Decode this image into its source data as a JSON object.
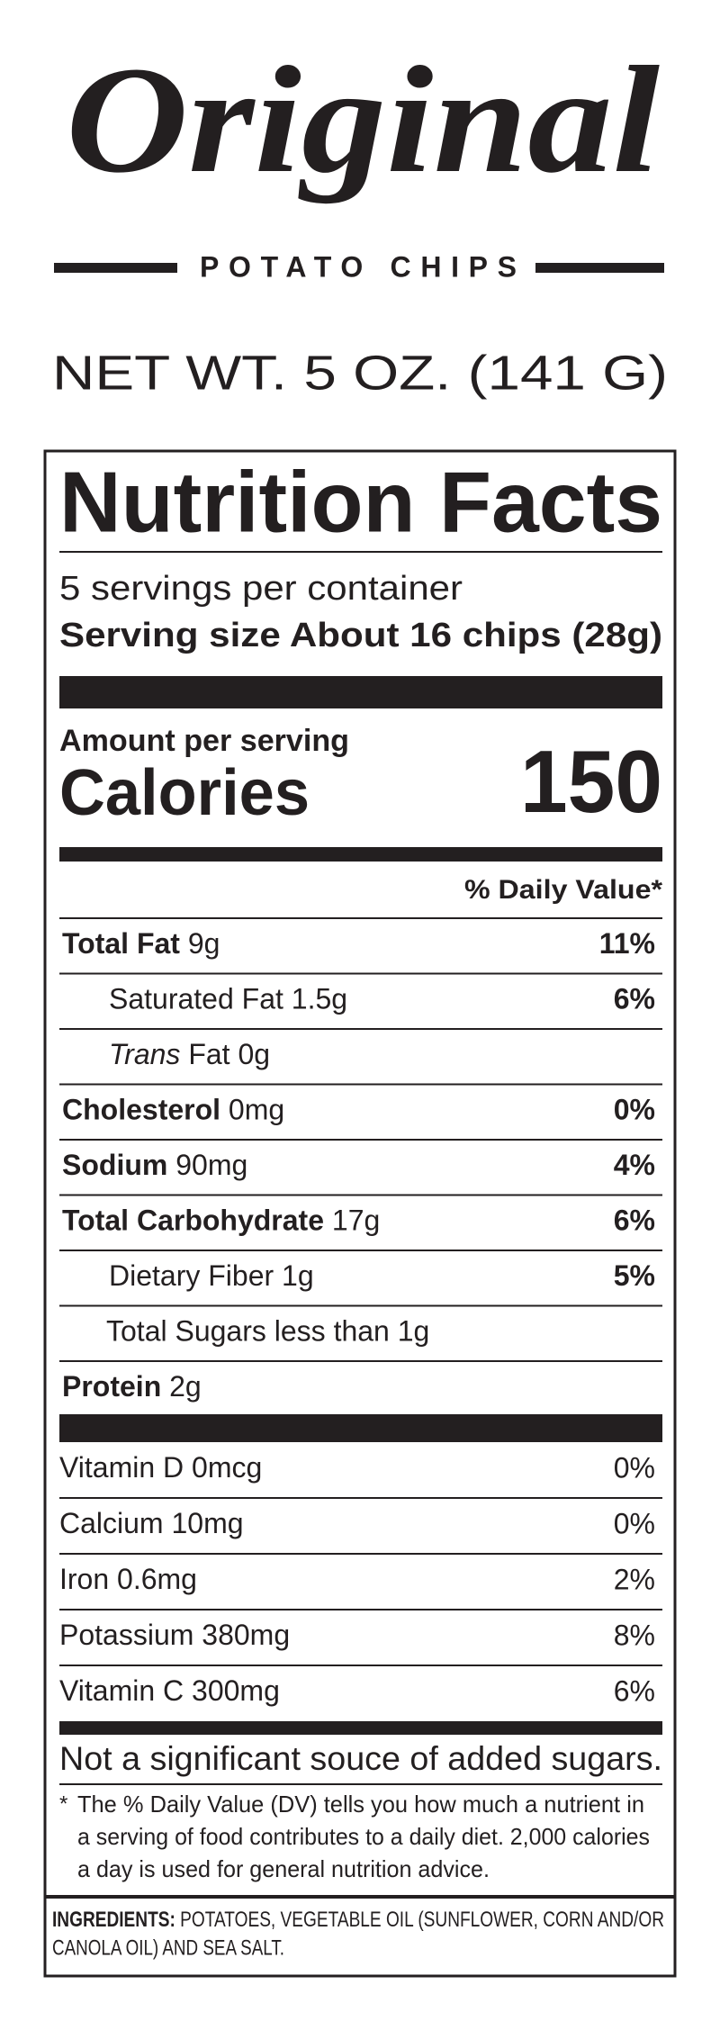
{
  "header": {
    "title": "Original",
    "subtitle": "POTATO CHIPS",
    "net_weight": "NET WT. 5 OZ. (141 G)"
  },
  "nutrition_facts": {
    "title": "Nutrition Facts",
    "servings": "5 servings per container",
    "serving_size_label": "Serving size",
    "serving_size": "About 16 chips (28g)",
    "amount_per_serving": "Amount per serving",
    "calories_label": "Calories",
    "calories": "150",
    "daily_value_header": "% Daily Value*",
    "nutrients": [
      {
        "name": "Total Fat",
        "amount": "9g",
        "dv": "11%"
      },
      {
        "name": "Saturated Fat",
        "amount": "1.5g",
        "dv": "6%"
      },
      {
        "name_italic": "Trans",
        "name": "Fat",
        "amount": "0g"
      },
      {
        "name": "Cholesterol",
        "amount": "0mg",
        "dv": "0%"
      },
      {
        "name": "Sodium",
        "amount": "90mg",
        "dv": "4%"
      },
      {
        "name": "Total Carbohydrate",
        "amount": "17g",
        "dv": "6%"
      },
      {
        "name": "Dietary Fiber",
        "amount": "1g",
        "dv": "5%"
      },
      {
        "name": "Total Sugars",
        "amount": "less than 1g"
      },
      {
        "name": "Protein",
        "amount": "2g"
      }
    ],
    "vitamins": [
      {
        "name": "Vitamin D",
        "amount": "0mcg",
        "dv": "0%"
      },
      {
        "name": "Calcium",
        "amount": "10mg",
        "dv": "0%"
      },
      {
        "name": "Iron",
        "amount": "0.6mg",
        "dv": "2%"
      },
      {
        "name": "Potassium",
        "amount": "380mg",
        "dv": "8%"
      },
      {
        "name": "Vitamin C",
        "amount": "300mg",
        "dv": "6%"
      }
    ],
    "added_sugars_note": "Not a significant souce of added sugars.",
    "footnote": [
      "*",
      "The % Daily Value (DV) tells you how much a nutrient in",
      "a serving of food contributes to a daily diet. 2,000 calories",
      "a day is used for general nutrition advice."
    ],
    "ingredients_label": "INGREDIENTS:",
    "ingredients": [
      "POTATOES, VEGETABLE OIL (SUNFLOWER, CORN AND/OR",
      "CANOLA OIL) AND SEA SALT."
    ]
  }
}
